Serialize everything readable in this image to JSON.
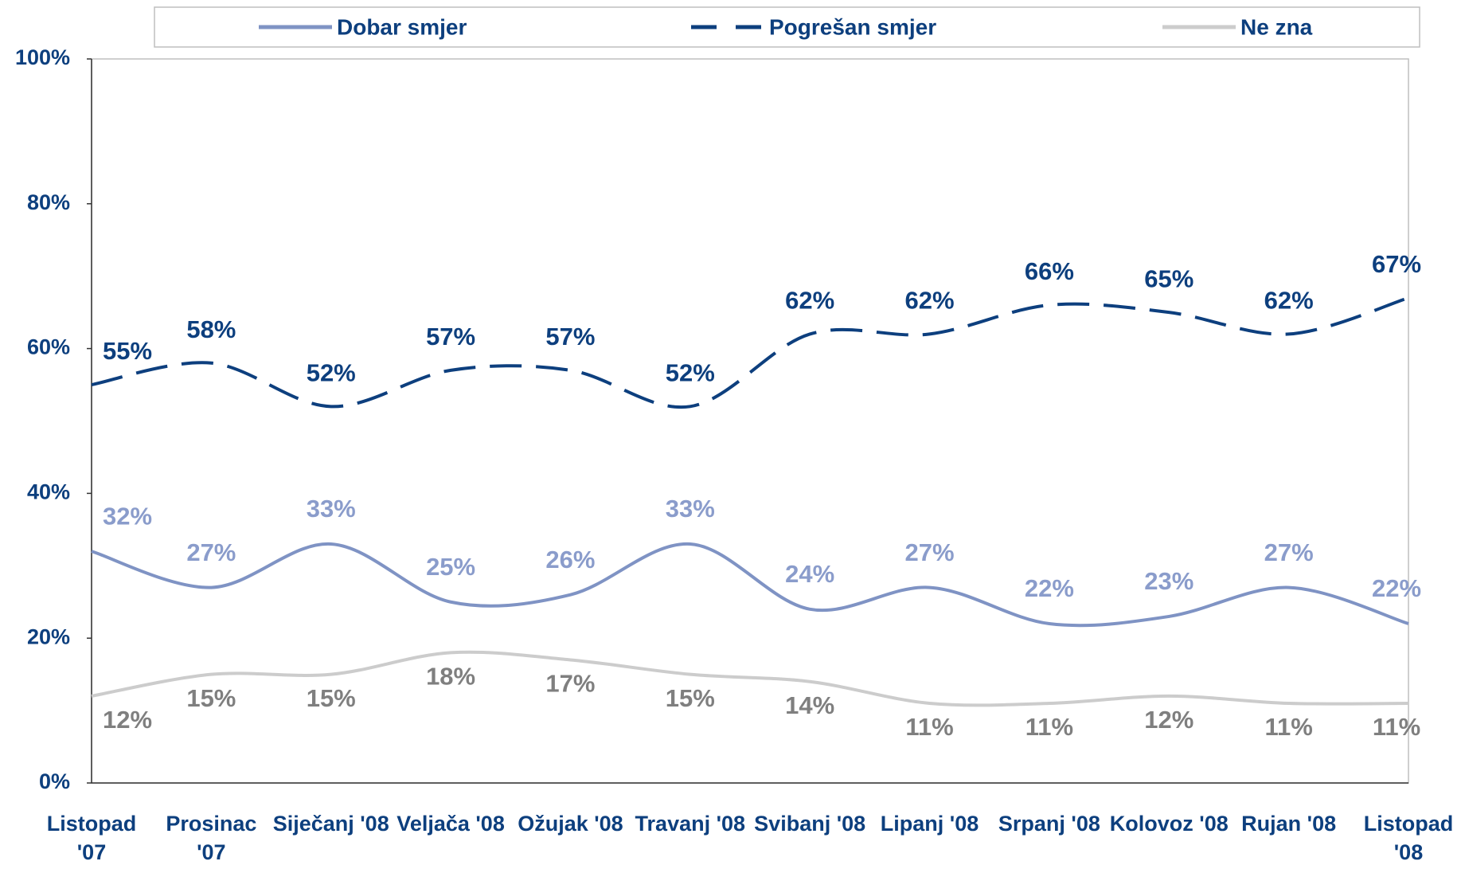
{
  "chart_data": {
    "type": "line",
    "categories": [
      "Listopad '07",
      "Prosinac '07",
      "Siječanj '08",
      "Veljača '08",
      "Ožujak '08",
      "Travanj '08",
      "Svibanj '08",
      "Lipanj '08",
      "Srpanj '08",
      "Kolovoz '08",
      "Rujan '08",
      "Listopad '08"
    ],
    "series": [
      {
        "name": "Dobar smjer",
        "color": "#7f93c4",
        "dash": false,
        "values": [
          32,
          27,
          33,
          25,
          26,
          33,
          24,
          27,
          22,
          23,
          27,
          22
        ],
        "value_labels": [
          "32%",
          "27%",
          "33%",
          "25%",
          "26%",
          "33%",
          "24%",
          "27%",
          "22%",
          "23%",
          "27%",
          "22%"
        ]
      },
      {
        "name": "Pogrešan smjer",
        "color": "#0d3f7e",
        "dash": true,
        "values": [
          55,
          58,
          52,
          57,
          57,
          52,
          62,
          62,
          66,
          65,
          62,
          67
        ],
        "value_labels": [
          "55%",
          "58%",
          "52%",
          "57%",
          "57%",
          "52%",
          "62%",
          "62%",
          "66%",
          "65%",
          "62%",
          "67%"
        ]
      },
      {
        "name": "Ne zna",
        "color": "#cccccc",
        "dash": false,
        "values": [
          12,
          15,
          15,
          18,
          17,
          15,
          14,
          11,
          11,
          12,
          11,
          11
        ],
        "value_labels": [
          "12%",
          "15%",
          "15%",
          "18%",
          "17%",
          "15%",
          "14%",
          "11%",
          "11%",
          "12%",
          "11%",
          "11%"
        ]
      }
    ],
    "ylim": [
      0,
      100
    ],
    "yticks": [
      {
        "value": 0,
        "label": "0%"
      },
      {
        "value": 20,
        "label": "20%"
      },
      {
        "value": 40,
        "label": "40%"
      },
      {
        "value": 60,
        "label": "60%"
      },
      {
        "value": 80,
        "label": "80%"
      },
      {
        "value": 100,
        "label": "100%"
      }
    ],
    "grid": false,
    "legend": "top"
  }
}
